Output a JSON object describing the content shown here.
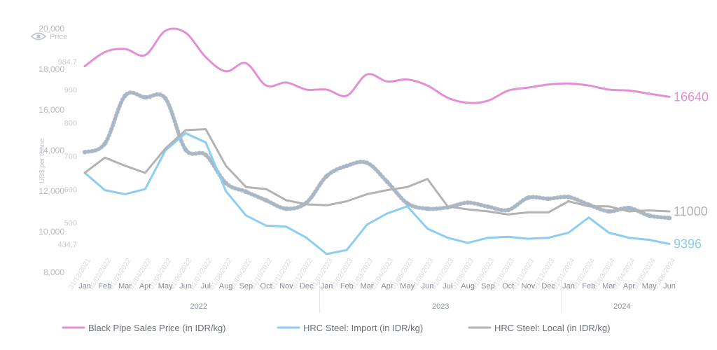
{
  "chart_data": {
    "type": "line",
    "y_axis": {
      "ticks": [
        "8,000",
        "10,000",
        "12,000",
        "14,000",
        "16,000",
        "18,000",
        "20,000"
      ],
      "range": [
        8000,
        20000
      ],
      "label": "US$ per tonne"
    },
    "y2_axis": {
      "label": "Price",
      "ticks": [
        "434.7",
        "500",
        "600",
        "700",
        "800",
        "900",
        "984.7"
      ],
      "values": [
        434.7,
        500,
        600,
        700,
        800,
        900,
        984.7
      ]
    },
    "x_axis": {
      "month_labels": [
        "Jan",
        "Feb",
        "Mar",
        "Apr",
        "May",
        "Jun",
        "Jul",
        "Aug",
        "Sep",
        "Oct",
        "Nov",
        "Dec",
        "Jan",
        "Feb",
        "Mar",
        "Apr",
        "May",
        "Jun",
        "Jul",
        "Aug",
        "Sep",
        "Oct",
        "Nov",
        "Dec",
        "Jan",
        "Feb",
        "Mar",
        "Apr",
        "May",
        "Jun"
      ],
      "date_labels": [
        "31/12/2021",
        "01/02/2022",
        "01/03/2022",
        "01/04/2022",
        "01/05/2022",
        "01/06/2022",
        "01/07/2022",
        "01/08/2022",
        "01/09/2022",
        "01/10/2022",
        "01/11/2022",
        "01/12/2022",
        "01/01/2023",
        "01/02/2023",
        "01/03/2023",
        "01/04/2023",
        "01/05/2023",
        "01/06/2023",
        "01/07/2023",
        "01/08/2023",
        "01/09/2023",
        "01/10/2023",
        "01/11/2023",
        "01/12/2023",
        "01/01/2024",
        "01/02/2024",
        "01/03/2024",
        "01/04/2024",
        "01/05/2024",
        "01/06/2024"
      ],
      "years": [
        {
          "label": "2022",
          "start": 0,
          "end": 12
        },
        {
          "label": "2023",
          "start": 12,
          "end": 24
        },
        {
          "label": "2024",
          "start": 24,
          "end": 30
        }
      ]
    },
    "series": [
      {
        "name": "Black Pipe Sales Price (in IDR/kg)",
        "color": "#e48fd5",
        "axis": "y",
        "end_label": "16640",
        "values": [
          18150,
          18850,
          19000,
          18700,
          19900,
          19800,
          18600,
          17900,
          18300,
          17200,
          17350,
          17000,
          17000,
          16700,
          17750,
          17400,
          17500,
          17200,
          16600,
          16350,
          16450,
          16950,
          17100,
          17250,
          17300,
          17200,
          17000,
          16950,
          16800,
          16640
        ]
      },
      {
        "name": "HRC Steel: Import (in IDR/kg)",
        "color": "#8dcdf0",
        "axis": "y",
        "end_label": "9396",
        "values": [
          12900,
          12050,
          11850,
          12100,
          14000,
          14850,
          14400,
          12000,
          10800,
          10300,
          10250,
          9700,
          8900,
          9100,
          10350,
          10900,
          11250,
          10150,
          9700,
          9450,
          9700,
          9750,
          9650,
          9700,
          9950,
          10700,
          9950,
          9700,
          9600,
          9396
        ]
      },
      {
        "name": "HRC Steel: Local (in IDR/kg)",
        "color": "#b3b3b3",
        "axis": "y",
        "end_label": "11000",
        "values": [
          12900,
          13650,
          13250,
          12900,
          14100,
          15000,
          15050,
          13250,
          12200,
          12100,
          11550,
          11350,
          11300,
          11500,
          11850,
          12050,
          12200,
          12600,
          11250,
          11100,
          11000,
          10850,
          10950,
          10950,
          11500,
          11250,
          11250,
          11000,
          11050,
          11000
        ]
      },
      {
        "name": "",
        "color": "#a9b6c4",
        "axis": "y2",
        "values": [
          712,
          738,
          882,
          877,
          874,
          720,
          704,
          619,
          593,
          567,
          542,
          560,
          640,
          671,
          680,
          623,
          558,
          542,
          546,
          560,
          548,
          538,
          575,
          572,
          577,
          554,
          534,
          544,
          521,
          514
        ]
      }
    ],
    "legend_position": "bottom",
    "grid": false
  }
}
